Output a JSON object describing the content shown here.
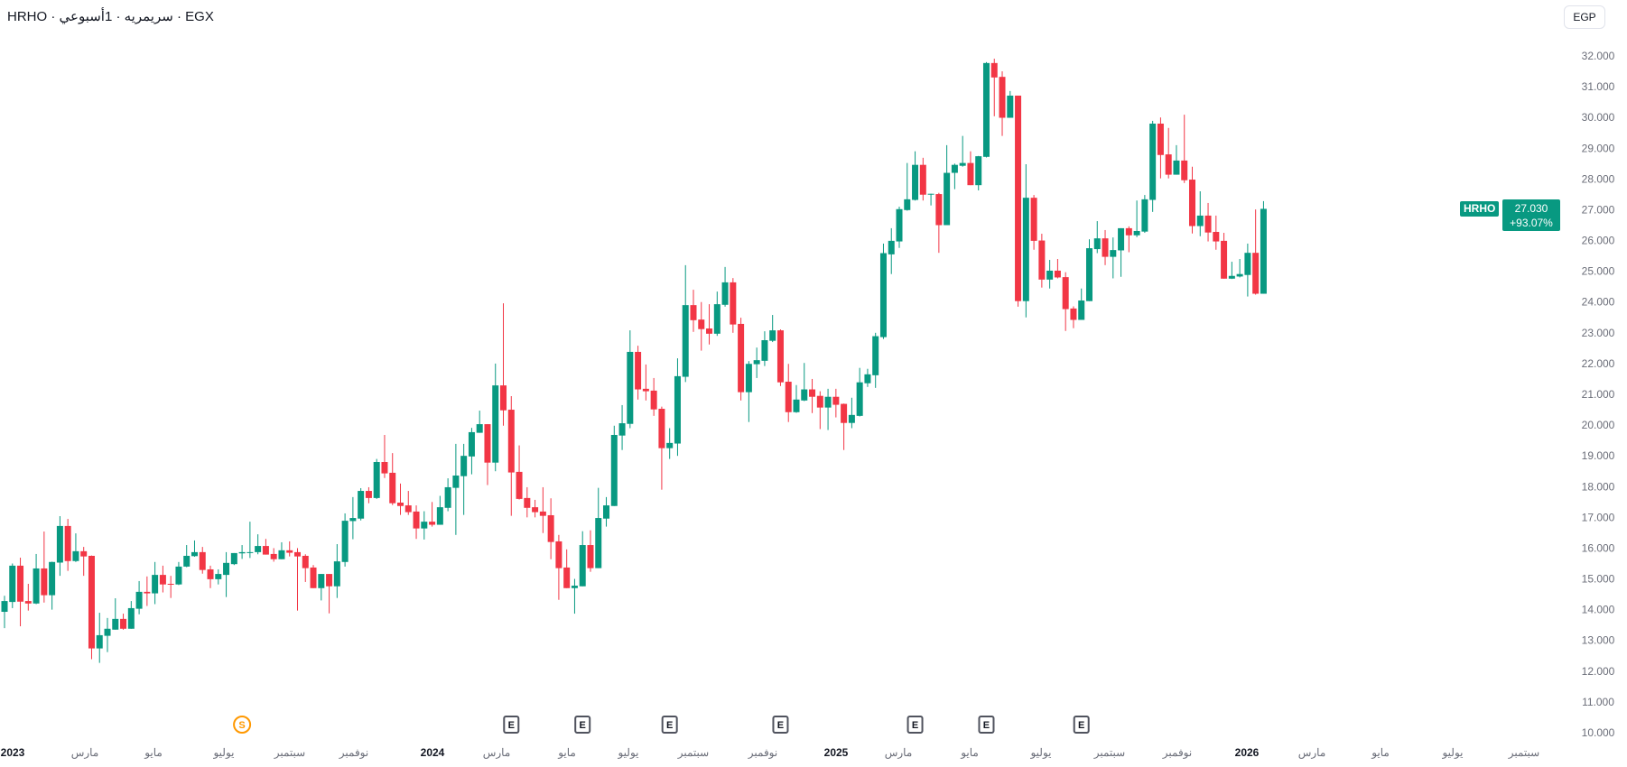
{
  "header": {
    "title": "HRHO · سريمريه · 1أسبوعي · EGX",
    "currency_button": "EGP"
  },
  "last_price": {
    "symbol": "HRHO",
    "price": "27.030",
    "change": "+93.07%"
  },
  "colors": {
    "up": "#089981",
    "down": "#f23645",
    "dividend": "#ff9800",
    "earnings": "#50535e"
  },
  "chart_data": {
    "type": "candlestick",
    "interval": "1 week",
    "ylim": [
      10,
      32
    ],
    "y_ticks": [
      "32.000",
      "31.000",
      "30.000",
      "29.000",
      "28.000",
      "27.000",
      "26.000",
      "25.000",
      "24.000",
      "23.000",
      "22.000",
      "21.000",
      "20.000",
      "19.000",
      "18.000",
      "17.000",
      "16.000",
      "15.000",
      "14.000",
      "13.000",
      "12.000",
      "11.000",
      "10.000"
    ],
    "x_ticks": [
      "2023",
      "مارس",
      "مايو",
      "يوليو",
      "سبتمبر",
      "نوفمبر",
      "2024",
      "مارس",
      "مايو",
      "يوليو",
      "سبتمبر",
      "نوفمبر",
      "2025",
      "مارس",
      "مايو",
      "يوليو",
      "سبتمبر",
      "نوفمبر",
      "2026",
      "مارس",
      "مايو",
      "يوليو",
      "سبتمبر"
    ],
    "year_ticks": [
      0,
      6,
      12,
      18
    ],
    "events": [
      {
        "label": "S",
        "type": "dividend",
        "week": 30
      },
      {
        "label": "E",
        "type": "earnings",
        "week": 64
      },
      {
        "label": "E",
        "type": "earnings",
        "week": 73
      },
      {
        "label": "E",
        "type": "earnings",
        "week": 84
      },
      {
        "label": "E",
        "type": "earnings",
        "week": 98
      },
      {
        "label": "E",
        "type": "earnings",
        "week": 115
      },
      {
        "label": "E",
        "type": "earnings",
        "week": 124
      },
      {
        "label": "E",
        "type": "earnings",
        "week": 136
      }
    ],
    "ohlc_fields": [
      "open",
      "high",
      "low",
      "close"
    ],
    "ohlc": [
      [
        13.93,
        14.45,
        13.4,
        14.28
      ],
      [
        14.25,
        15.5,
        14.05,
        15.43
      ],
      [
        15.43,
        15.69,
        13.46,
        14.26
      ],
      [
        14.28,
        14.84,
        13.97,
        14.2
      ],
      [
        14.2,
        15.81,
        14.18,
        15.34
      ],
      [
        15.34,
        16.54,
        14.23,
        14.47
      ],
      [
        14.47,
        15.56,
        14.0,
        15.55
      ],
      [
        15.53,
        17.04,
        15.1,
        16.72
      ],
      [
        16.72,
        16.95,
        15.26,
        15.58
      ],
      [
        15.58,
        16.48,
        15.55,
        15.9
      ],
      [
        15.9,
        16.04,
        15.1,
        15.73
      ],
      [
        15.75,
        15.76,
        12.39,
        12.74
      ],
      [
        12.74,
        13.9,
        12.27,
        13.17
      ],
      [
        13.15,
        13.73,
        12.62,
        13.38
      ],
      [
        13.35,
        14.37,
        13.35,
        13.7
      ],
      [
        13.7,
        13.87,
        13.35,
        13.38
      ],
      [
        13.38,
        14.28,
        13.38,
        14.05
      ],
      [
        14.03,
        14.93,
        13.85,
        14.58
      ],
      [
        14.58,
        15.08,
        14.12,
        14.53
      ],
      [
        14.53,
        15.55,
        14.18,
        15.13
      ],
      [
        15.13,
        15.43,
        14.56,
        14.82
      ],
      [
        14.84,
        15.1,
        14.38,
        14.82
      ],
      [
        14.82,
        15.55,
        14.8,
        15.4
      ],
      [
        15.4,
        16.1,
        15.38,
        15.75
      ],
      [
        15.74,
        16.25,
        15.72,
        15.87
      ],
      [
        15.87,
        16.04,
        15.17,
        15.29
      ],
      [
        15.31,
        15.43,
        14.7,
        14.99
      ],
      [
        14.99,
        15.31,
        14.82,
        15.16
      ],
      [
        15.13,
        15.87,
        14.41,
        15.52
      ],
      [
        15.48,
        15.84,
        15.45,
        15.84
      ],
      [
        15.83,
        16.1,
        15.65,
        15.87
      ],
      [
        15.86,
        16.86,
        15.68,
        15.87
      ],
      [
        15.87,
        16.45,
        15.8,
        16.07
      ],
      [
        16.07,
        16.3,
        15.79,
        15.79
      ],
      [
        15.81,
        16.0,
        15.56,
        15.64
      ],
      [
        15.64,
        16.19,
        15.64,
        15.93
      ],
      [
        15.93,
        16.22,
        15.73,
        15.85
      ],
      [
        15.87,
        16.0,
        13.97,
        15.73
      ],
      [
        15.75,
        15.8,
        14.9,
        15.35
      ],
      [
        15.37,
        15.45,
        14.7,
        14.7
      ],
      [
        14.7,
        15.16,
        14.3,
        15.16
      ],
      [
        15.16,
        15.16,
        13.88,
        14.76
      ],
      [
        14.76,
        16.13,
        14.38,
        15.57
      ],
      [
        15.55,
        17.13,
        15.4,
        16.89
      ],
      [
        16.88,
        17.66,
        16.29,
        16.98
      ],
      [
        16.96,
        17.95,
        16.9,
        17.86
      ],
      [
        17.86,
        17.98,
        17.46,
        17.63
      ],
      [
        17.63,
        18.9,
        17.6,
        18.8
      ],
      [
        18.8,
        19.68,
        18.28,
        18.43
      ],
      [
        18.45,
        19.09,
        17.4,
        17.46
      ],
      [
        17.48,
        18.1,
        17.08,
        17.37
      ],
      [
        17.39,
        17.86,
        17.08,
        17.17
      ],
      [
        17.19,
        17.39,
        16.3,
        16.64
      ],
      [
        16.64,
        17.2,
        16.28,
        16.86
      ],
      [
        16.86,
        17.5,
        16.7,
        16.76
      ],
      [
        16.76,
        17.7,
        16.76,
        17.33
      ],
      [
        17.31,
        18.27,
        17.2,
        17.98
      ],
      [
        17.96,
        19.39,
        16.43,
        18.36
      ],
      [
        18.34,
        19.39,
        17.08,
        19.0
      ],
      [
        18.98,
        19.91,
        18.4,
        19.77
      ],
      [
        19.75,
        20.47,
        19.75,
        20.03
      ],
      [
        20.03,
        20.03,
        18.05,
        18.78
      ],
      [
        18.78,
        22.0,
        18.5,
        21.29
      ],
      [
        21.29,
        23.96,
        19.98,
        20.48
      ],
      [
        20.5,
        20.94,
        17.05,
        18.46
      ],
      [
        18.48,
        19.34,
        17.58,
        17.6
      ],
      [
        17.63,
        17.98,
        17.0,
        17.31
      ],
      [
        17.33,
        17.57,
        17.0,
        17.17
      ],
      [
        17.19,
        17.98,
        16.49,
        17.05
      ],
      [
        17.07,
        17.62,
        15.64,
        16.2
      ],
      [
        16.22,
        16.43,
        14.32,
        15.35
      ],
      [
        15.37,
        15.96,
        14.7,
        14.7
      ],
      [
        14.7,
        15.0,
        13.87,
        14.78
      ],
      [
        14.76,
        16.55,
        14.76,
        16.1
      ],
      [
        16.1,
        16.58,
        15.23,
        15.35
      ],
      [
        15.35,
        17.96,
        15.35,
        16.98
      ],
      [
        16.96,
        17.66,
        16.7,
        17.39
      ],
      [
        17.37,
        19.98,
        17.37,
        19.68
      ],
      [
        19.66,
        20.65,
        19.19,
        20.06
      ],
      [
        20.04,
        23.08,
        19.9,
        22.38
      ],
      [
        22.38,
        22.58,
        20.83,
        21.16
      ],
      [
        21.18,
        21.97,
        20.8,
        21.1
      ],
      [
        21.12,
        21.53,
        20.3,
        20.51
      ],
      [
        20.53,
        20.6,
        17.9,
        19.25
      ],
      [
        19.25,
        19.9,
        18.9,
        19.42
      ],
      [
        19.4,
        22.17,
        19.0,
        21.59
      ],
      [
        21.57,
        25.2,
        21.4,
        23.9
      ],
      [
        23.9,
        24.4,
        23.03,
        23.41
      ],
      [
        23.43,
        24.0,
        22.42,
        23.12
      ],
      [
        23.14,
        23.93,
        22.62,
        22.97
      ],
      [
        22.97,
        24.34,
        22.9,
        23.93
      ],
      [
        23.91,
        25.14,
        23.85,
        24.64
      ],
      [
        24.64,
        24.78,
        23.0,
        23.27
      ],
      [
        23.29,
        23.49,
        20.8,
        21.07
      ],
      [
        21.07,
        22.08,
        20.1,
        21.99
      ],
      [
        21.98,
        22.52,
        21.53,
        22.11
      ],
      [
        22.09,
        23.05,
        21.92,
        22.76
      ],
      [
        22.74,
        23.58,
        22.7,
        23.08
      ],
      [
        23.08,
        23.11,
        21.27,
        21.39
      ],
      [
        21.41,
        21.99,
        20.1,
        20.42
      ],
      [
        20.42,
        21.3,
        20.4,
        20.83
      ],
      [
        20.8,
        22.02,
        20.78,
        21.16
      ],
      [
        21.16,
        21.5,
        20.39,
        20.92
      ],
      [
        20.95,
        21.1,
        19.87,
        20.57
      ],
      [
        20.57,
        21.18,
        19.84,
        20.92
      ],
      [
        20.92,
        21.18,
        20.25,
        20.66
      ],
      [
        20.69,
        20.7,
        19.19,
        20.07
      ],
      [
        20.07,
        20.89,
        19.9,
        20.33
      ],
      [
        20.3,
        21.86,
        20.28,
        21.39
      ],
      [
        21.36,
        21.83,
        21.24,
        21.65
      ],
      [
        21.62,
        23.0,
        21.21,
        22.89
      ],
      [
        22.86,
        25.9,
        22.8,
        25.59
      ],
      [
        25.55,
        26.4,
        24.91,
        25.99
      ],
      [
        25.97,
        27.1,
        25.76,
        27.02
      ],
      [
        26.99,
        28.52,
        26.97,
        27.34
      ],
      [
        27.32,
        28.9,
        27.3,
        28.46
      ],
      [
        28.46,
        28.69,
        27.3,
        27.49
      ],
      [
        27.5,
        27.52,
        27.14,
        27.52
      ],
      [
        27.51,
        27.55,
        25.6,
        26.5
      ],
      [
        26.5,
        29.1,
        26.5,
        28.2
      ],
      [
        28.2,
        28.5,
        27.67,
        28.46
      ],
      [
        28.43,
        29.4,
        28.4,
        28.52
      ],
      [
        28.52,
        28.9,
        27.8,
        27.8
      ],
      [
        27.8,
        28.75,
        27.63,
        28.74
      ],
      [
        28.72,
        31.8,
        28.7,
        31.77
      ],
      [
        31.77,
        31.91,
        30.04,
        31.3
      ],
      [
        31.32,
        31.5,
        29.4,
        29.99
      ],
      [
        29.99,
        30.86,
        29.99,
        30.71
      ],
      [
        30.71,
        30.71,
        23.85,
        24.03
      ],
      [
        24.03,
        28.48,
        23.5,
        27.39
      ],
      [
        27.39,
        27.48,
        25.7,
        25.99
      ],
      [
        26.0,
        26.22,
        24.47,
        24.73
      ],
      [
        24.73,
        25.37,
        24.44,
        25.02
      ],
      [
        25.02,
        25.4,
        24.77,
        24.8
      ],
      [
        24.81,
        24.97,
        23.06,
        23.77
      ],
      [
        23.79,
        23.86,
        23.15,
        23.42
      ],
      [
        23.42,
        24.44,
        23.42,
        24.05
      ],
      [
        24.03,
        26.04,
        24.03,
        25.75
      ],
      [
        25.72,
        26.63,
        25.59,
        26.07
      ],
      [
        26.07,
        26.34,
        25.2,
        25.47
      ],
      [
        25.47,
        26.1,
        24.77,
        25.69
      ],
      [
        25.68,
        26.4,
        24.82,
        26.4
      ],
      [
        26.4,
        26.46,
        25.62,
        26.17
      ],
      [
        26.17,
        27.3,
        26.11,
        26.31
      ],
      [
        26.29,
        27.48,
        26.25,
        27.34
      ],
      [
        27.32,
        29.89,
        26.93,
        29.8
      ],
      [
        29.8,
        30.0,
        28.02,
        28.78
      ],
      [
        28.8,
        29.66,
        28.02,
        28.14
      ],
      [
        28.14,
        29.1,
        28.14,
        28.6
      ],
      [
        28.6,
        30.09,
        27.87,
        27.96
      ],
      [
        27.98,
        28.4,
        26.23,
        26.47
      ],
      [
        26.47,
        27.6,
        26.14,
        26.81
      ],
      [
        26.81,
        27.22,
        25.97,
        26.26
      ],
      [
        26.28,
        26.81,
        25.7,
        25.97
      ],
      [
        25.99,
        26.25,
        24.76,
        24.76
      ],
      [
        24.76,
        25.31,
        24.75,
        24.85
      ],
      [
        24.83,
        25.4,
        24.8,
        24.91
      ],
      [
        24.88,
        25.9,
        24.18,
        25.6
      ],
      [
        25.6,
        27.01,
        24.24,
        24.27
      ],
      [
        24.27,
        27.28,
        24.27,
        27.03
      ]
    ]
  }
}
